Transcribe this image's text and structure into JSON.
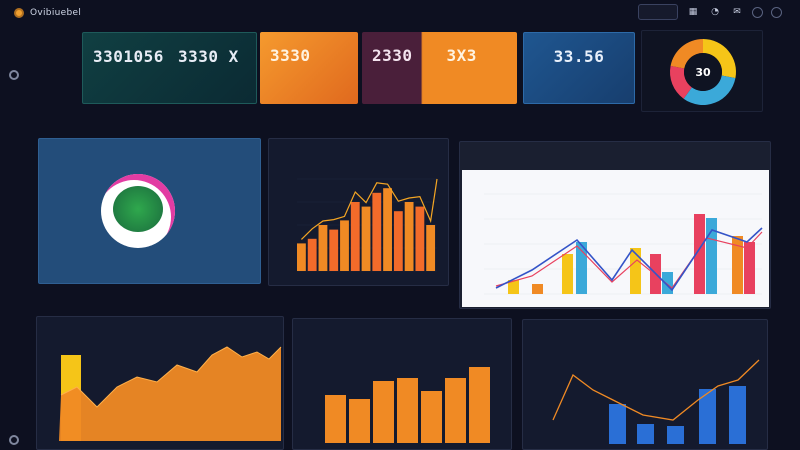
{
  "app": {
    "title": "Ovibiuebel"
  },
  "top_actions": {
    "pill_label": ""
  },
  "kpis": [
    {
      "label_a": "",
      "value_a": "3301056",
      "label_b": "",
      "value_b": "3330 X",
      "sub_a": "",
      "sub_b": ""
    },
    {
      "label": "",
      "value": "3330",
      "sub": ""
    },
    {
      "label_a": "",
      "value_a": "2330",
      "label_b": "",
      "value_b": "3X3",
      "sub_a": "",
      "sub_b": ""
    },
    {
      "label": "",
      "value": "33.56",
      "sub": ""
    }
  ],
  "donut": {
    "value": "30",
    "segments": [
      {
        "color": "#f5c518",
        "frac": 0.28
      },
      {
        "color": "#3ba9d9",
        "frac": 0.32
      },
      {
        "color": "#e8415f",
        "frac": 0.18
      },
      {
        "color": "#f08a24",
        "frac": 0.22
      }
    ]
  },
  "panels": {
    "profile": {
      "title": "",
      "line1": "",
      "line2": "",
      "line3": "",
      "line4": ""
    },
    "bar_orange": {
      "title": "",
      "badge": ""
    },
    "mixed_white": {
      "title": "",
      "badge": "",
      "legend": "",
      "tag": ""
    },
    "area": {
      "title": "",
      "badge": ""
    },
    "bars2": {
      "title": "",
      "badge": ""
    },
    "blue_line": {
      "title": "",
      "badge": ""
    }
  },
  "colors": {
    "kpi1": "#0f3b3c",
    "kpi2": "#f08a24",
    "kpi3": "#4a1f3a",
    "kpi3b": "#f08a24",
    "kpi4": "#1b4a7a",
    "orange": "#f08a24",
    "orange2": "#f26b2a",
    "yellow": "#f5c518",
    "blue": "#2a6fd6"
  }
}
